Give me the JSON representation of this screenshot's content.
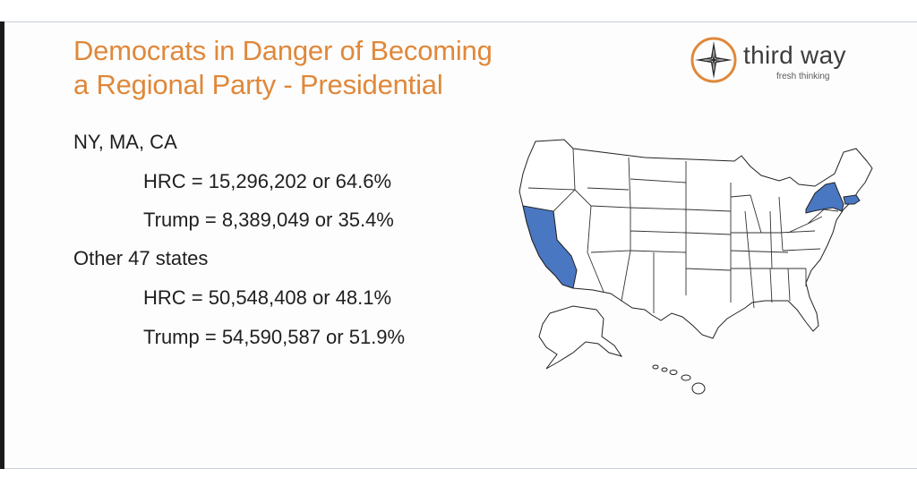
{
  "slide": {
    "title_line1": "Democrats in Danger of Becoming",
    "title_line2": "a Regional Party - Presidential"
  },
  "logo": {
    "name": "third way",
    "tagline": "fresh thinking",
    "icon": "compass-star-icon"
  },
  "stats": {
    "group1_label": "NY, MA, CA",
    "group1_hrc": "HRC = 15,296,202 or 64.6%",
    "group1_trump": "Trump = 8,389,049 or 35.4%",
    "group2_label": "Other 47 states",
    "group2_hrc": "HRC = 50,548,408 or 48.1%",
    "group2_trump": "Trump = 54,590,587 or  51.9%"
  },
  "map": {
    "highlighted_states": [
      "NY",
      "MA",
      "CA"
    ],
    "highlight_color": "#4a77c2"
  },
  "colors": {
    "title": "#e0883a",
    "text": "#1f1f1f"
  }
}
